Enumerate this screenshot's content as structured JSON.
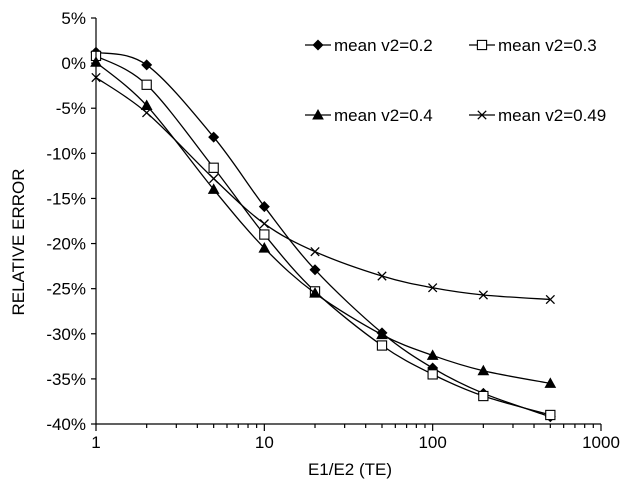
{
  "chart_data": {
    "type": "line",
    "x_scale": "log",
    "xlabel": "E1/E2 (TE)",
    "ylabel": "RELATIVE ERROR",
    "xlim": [
      1,
      1000
    ],
    "ylim": [
      -40,
      5
    ],
    "x_ticks": [
      1,
      10,
      100,
      1000
    ],
    "x_tick_labels": [
      "1",
      "10",
      "100",
      "1000"
    ],
    "y_ticks": [
      5,
      0,
      -5,
      -10,
      -15,
      -20,
      -25,
      -30,
      -35,
      -40
    ],
    "y_tick_labels": [
      "5%",
      "0%",
      "-5%",
      "-10%",
      "-15%",
      "-20%",
      "-25%",
      "-30%",
      "-35%",
      "-40%"
    ],
    "grid": false,
    "legend_position": "top-right",
    "x": [
      1,
      2,
      5,
      10,
      20,
      50,
      100,
      200,
      500
    ],
    "series": [
      {
        "name": "mean v2=0.2",
        "marker": "diamond",
        "color": "#000000",
        "values": [
          1.2,
          -0.2,
          -8.2,
          -15.9,
          -22.9,
          -29.9,
          -33.8,
          -36.6,
          -39.2
        ]
      },
      {
        "name": "mean v2=0.3",
        "marker": "square-open",
        "color": "#000000",
        "values": [
          0.8,
          -2.4,
          -11.6,
          -19.0,
          -25.3,
          -31.3,
          -34.5,
          -36.9,
          -39.0
        ]
      },
      {
        "name": "mean v2=0.4",
        "marker": "triangle",
        "color": "#000000",
        "values": [
          0.1,
          -4.7,
          -14.0,
          -20.5,
          -25.5,
          -30.1,
          -32.4,
          -34.1,
          -35.5
        ]
      },
      {
        "name": "mean v2=0.49",
        "marker": "x",
        "color": "#000000",
        "values": [
          -1.6,
          -5.5,
          -12.8,
          -17.8,
          -20.9,
          -23.6,
          -24.9,
          -25.7,
          -26.2
        ]
      }
    ]
  }
}
